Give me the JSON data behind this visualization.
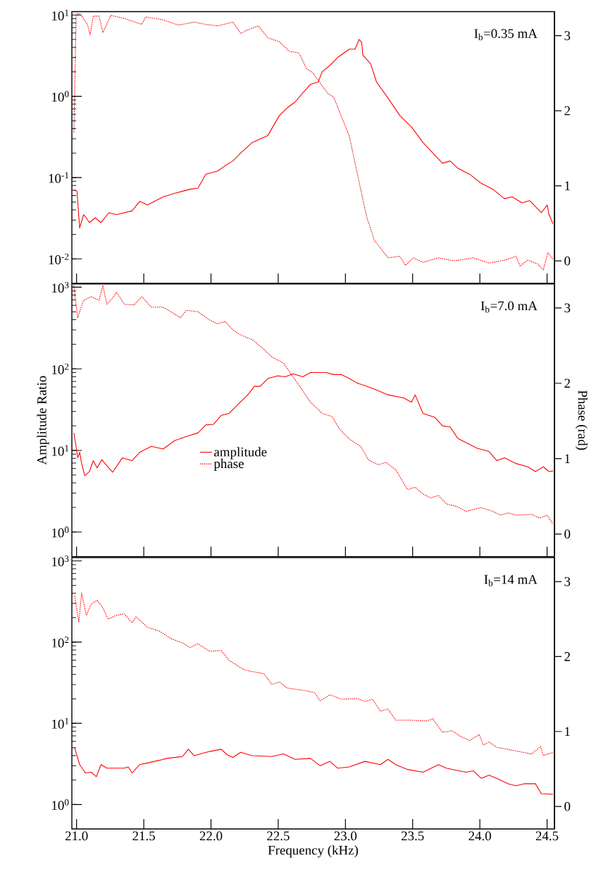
{
  "chart_data": [
    {
      "type": "line",
      "log": "y",
      "xlim": [
        20.965,
        24.555
      ],
      "ylim": [
        0.005,
        11
      ],
      "y2lim": [
        -0.3,
        3.32
      ],
      "tick_labels": "y",
      "xticks": [
        {
          "value": 21,
          "label": null
        },
        {
          "value": 21.5,
          "label": null
        },
        {
          "value": 22,
          "label": null
        },
        {
          "value": 22.5,
          "label": null
        },
        {
          "value": 23,
          "label": null
        },
        {
          "value": 23.5,
          "label": null
        },
        {
          "value": 24,
          "label": null
        },
        {
          "value": 24.5,
          "label": null
        }
      ],
      "yticks": [
        {
          "value": 0.01,
          "label": "10$^{-2}$"
        },
        {
          "value": 0.1,
          "label": "10$^{-1}$"
        },
        {
          "value": 1,
          "label": "10$^{0}$"
        },
        {
          "value": 10,
          "label": "10$^{1}$"
        }
      ],
      "y2ticks": [
        0,
        1,
        2,
        3
      ],
      "annotations": [
        "I$_{b}$=0.35 mA"
      ],
      "series": [
        {
          "color": "#ff0000",
          "line_style": "solid",
          "x": [
            20.98,
            21.003,
            21.023,
            21.052,
            21.072,
            21.095,
            21.139,
            21.182,
            21.24,
            21.297,
            21.413,
            21.47,
            21.528,
            21.644,
            21.73,
            21.846,
            21.903,
            21.961,
            22.048,
            22.105,
            22.163,
            22.221,
            22.307,
            22.423,
            22.509,
            22.567,
            22.625,
            22.683,
            22.74,
            22.798,
            22.827,
            22.885,
            22.942,
            23.029,
            23.072,
            23.101,
            23.121,
            23.13,
            23.188,
            23.231,
            23.317,
            23.404,
            23.491,
            23.577,
            23.664,
            23.722,
            23.779,
            23.837,
            23.924,
            24.01,
            24.097,
            24.183,
            24.241,
            24.313,
            24.371,
            24.414,
            24.457,
            24.501,
            24.515,
            24.544
          ],
          "values": [
            0.07,
            0.068,
            0.024,
            0.035,
            0.032,
            0.028,
            0.032,
            0.028,
            0.037,
            0.035,
            0.039,
            0.051,
            0.046,
            0.058,
            0.064,
            0.072,
            0.074,
            0.11,
            0.12,
            0.14,
            0.16,
            0.2,
            0.27,
            0.33,
            0.58,
            0.72,
            0.85,
            1.1,
            1.4,
            1.5,
            2.0,
            2.4,
            3.0,
            3.8,
            3.8,
            5.0,
            4.6,
            3.2,
            2.5,
            1.5,
            0.95,
            0.58,
            0.42,
            0.27,
            0.19,
            0.15,
            0.16,
            0.13,
            0.11,
            0.085,
            0.072,
            0.055,
            0.058,
            0.049,
            0.052,
            0.044,
            0.037,
            0.046,
            0.035,
            0.027
          ]
        },
        {
          "color": "#ff0000",
          "line_style": "dotted",
          "axis": "y2",
          "x": [
            20.98,
            20.997,
            21.009,
            21.038,
            21.081,
            21.101,
            21.124,
            21.167,
            21.196,
            21.254,
            21.355,
            21.485,
            21.514,
            21.644,
            21.759,
            21.874,
            21.961,
            22.048,
            22.163,
            22.221,
            22.278,
            22.351,
            22.423,
            22.509,
            22.582,
            22.654,
            22.711,
            22.755,
            22.827,
            22.87,
            22.913,
            22.971,
            23.029,
            23.072,
            23.115,
            23.159,
            23.216,
            23.274,
            23.317,
            23.404,
            23.447,
            23.505,
            23.577,
            23.693,
            23.808,
            23.952,
            24.068,
            24.183,
            24.27,
            24.299,
            24.356,
            24.429,
            24.472,
            24.506,
            24.544
          ],
          "values": [
            1.71,
            3.26,
            3.3,
            3.26,
            3.15,
            3.01,
            3.26,
            3.26,
            3.04,
            3.27,
            3.23,
            3.15,
            3.25,
            3.21,
            3.14,
            3.18,
            3.15,
            3.13,
            3.18,
            3.03,
            3.08,
            3.13,
            2.97,
            2.92,
            2.79,
            2.77,
            2.56,
            2.51,
            2.33,
            2.23,
            2.18,
            1.92,
            1.66,
            1.3,
            0.94,
            0.58,
            0.27,
            0.14,
            0.04,
            0.06,
            -0.06,
            0.04,
            -0.02,
            0.04,
            0,
            0.04,
            -0.03,
            0.01,
            0.06,
            -0.07,
            0.01,
            -0.04,
            -0.12,
            0.11,
            0.02
          ]
        }
      ]
    },
    {
      "type": "line",
      "log": "y",
      "xlim": [
        20.965,
        24.555
      ],
      "ylim": [
        0.5,
        1100
      ],
      "y2lim": [
        -0.3,
        3.32
      ],
      "tick_labels": "y",
      "ylabel": "Amplitude Ratio",
      "y2label": "Phase (rad)",
      "legend": "bottom left",
      "xticks": [
        {
          "value": 21,
          "label": null
        },
        {
          "value": 21.5,
          "label": null
        },
        {
          "value": 22,
          "label": null
        },
        {
          "value": 22.5,
          "label": null
        },
        {
          "value": 23,
          "label": null
        },
        {
          "value": 23.5,
          "label": null
        },
        {
          "value": 24,
          "label": null
        },
        {
          "value": 24.5,
          "label": null
        }
      ],
      "yticks": [
        {
          "value": 1,
          "label": "10$^{0}$"
        },
        {
          "value": 10,
          "label": "10$^{1}$"
        },
        {
          "value": 100,
          "label": "10$^{2}$"
        },
        {
          "value": 1000,
          "label": "10$^{3}$"
        }
      ],
      "y2ticks": [
        0,
        1,
        2,
        3
      ],
      "annotations": [
        "I$_{b}$=7.0 mA"
      ],
      "series": [
        {
          "name": "amplitude",
          "color": "#ff0000",
          "line_style": "solid",
          "x": [
            20.98,
            20.994,
            21.009,
            21.023,
            21.038,
            21.061,
            21.095,
            21.124,
            21.153,
            21.188,
            21.24,
            21.268,
            21.312,
            21.341,
            21.413,
            21.47,
            21.557,
            21.644,
            21.73,
            21.817,
            21.903,
            21.961,
            22.019,
            22.076,
            22.134,
            22.192,
            22.278,
            22.322,
            22.365,
            22.423,
            22.495,
            22.553,
            22.61,
            22.683,
            22.74,
            22.856,
            22.913,
            22.971,
            23.029,
            23.087,
            23.159,
            23.231,
            23.317,
            23.433,
            23.491,
            23.519,
            23.577,
            23.664,
            23.722,
            23.779,
            23.837,
            23.895,
            23.981,
            24.068,
            24.126,
            24.183,
            24.27,
            24.356,
            24.414,
            24.472,
            24.515,
            24.544
          ],
          "values": [
            16.4,
            11.9,
            8.1,
            9.5,
            6.9,
            4.9,
            5.5,
            7.5,
            6.1,
            7.7,
            6.1,
            5.4,
            6.9,
            8.1,
            7.5,
            9.5,
            11.2,
            10.4,
            13.2,
            14.8,
            16.4,
            20.5,
            20.9,
            26.9,
            28.4,
            35.4,
            49,
            61,
            61,
            76,
            82,
            80,
            87,
            80,
            90,
            90,
            85,
            85,
            76,
            67,
            61,
            55,
            48,
            44,
            39,
            48,
            28.4,
            25.5,
            20,
            19.4,
            14,
            12.5,
            10.6,
            9.7,
            7.5,
            8.1,
            6.9,
            6.3,
            5.5,
            6.3,
            5.5,
            5.6
          ]
        },
        {
          "name": "phase",
          "color": "#ff0000",
          "line_style": "dotted",
          "axis": "y2",
          "x": [
            20.98,
            20.994,
            21.009,
            21.023,
            21.052,
            21.11,
            21.167,
            21.196,
            21.225,
            21.268,
            21.297,
            21.355,
            21.427,
            21.485,
            21.557,
            21.644,
            21.701,
            21.773,
            21.817,
            21.903,
            21.99,
            22.048,
            22.105,
            22.163,
            22.221,
            22.307,
            22.394,
            22.452,
            22.538,
            22.596,
            22.668,
            22.74,
            22.827,
            22.899,
            22.957,
            23.029,
            23.115,
            23.173,
            23.245,
            23.303,
            23.375,
            23.462,
            23.519,
            23.577,
            23.635,
            23.693,
            23.75,
            23.837,
            23.895,
            24.01,
            24.097,
            24.154,
            24.212,
            24.27,
            24.385,
            24.443,
            24.501,
            24.544
          ],
          "values": [
            3.3,
            3.08,
            2.87,
            2.95,
            3.1,
            3.15,
            3.1,
            3.3,
            3.05,
            3.13,
            3.21,
            3.05,
            3.04,
            3.15,
            3.01,
            3.01,
            2.95,
            2.87,
            2.97,
            2.95,
            2.84,
            2.79,
            2.82,
            2.71,
            2.64,
            2.58,
            2.45,
            2.35,
            2.27,
            2.12,
            1.94,
            1.75,
            1.6,
            1.56,
            1.39,
            1.26,
            1.16,
            0.98,
            0.92,
            0.95,
            0.85,
            0.59,
            0.62,
            0.53,
            0.48,
            0.51,
            0.4,
            0.36,
            0.3,
            0.35,
            0.3,
            0.25,
            0.28,
            0.25,
            0.26,
            0.21,
            0.25,
            0.13
          ]
        }
      ]
    },
    {
      "type": "line",
      "log": "y",
      "xlim": [
        20.965,
        24.555
      ],
      "ylim": [
        0.5,
        1100
      ],
      "y2lim": [
        -0.3,
        3.32
      ],
      "xlabel": "Frequency (kHz)",
      "xticks": [
        {
          "value": 21,
          "label": "21.0"
        },
        {
          "value": 21.5,
          "label": "21.5"
        },
        {
          "value": 22,
          "label": "22.0"
        },
        {
          "value": 22.5,
          "label": "22.5"
        },
        {
          "value": 23,
          "label": "23.0"
        },
        {
          "value": 23.5,
          "label": "23.5"
        },
        {
          "value": 24,
          "label": "24.0"
        },
        {
          "value": 24.5,
          "label": "24.5"
        }
      ],
      "yticks": [
        {
          "value": 1,
          "label": "10$^{0}$"
        },
        {
          "value": 10,
          "label": "10$^{1}$"
        },
        {
          "value": 100,
          "label": "10$^{2}$"
        },
        {
          "value": 1000,
          "label": "10$^{3}$"
        }
      ],
      "y2ticks": [
        0,
        1,
        2,
        3
      ],
      "annotations": [
        "I$_{b}$=14 mA"
      ],
      "series": [
        {
          "color": "#ff0000",
          "line_style": "solid",
          "x": [
            20.986,
            21.023,
            21.066,
            21.11,
            21.147,
            21.182,
            21.225,
            21.355,
            21.384,
            21.413,
            21.47,
            21.528,
            21.615,
            21.672,
            21.788,
            21.831,
            21.874,
            21.99,
            22.076,
            22.12,
            22.163,
            22.221,
            22.307,
            22.452,
            22.538,
            22.625,
            22.74,
            22.812,
            22.885,
            22.942,
            23.029,
            23.144,
            23.26,
            23.317,
            23.375,
            23.462,
            23.577,
            23.693,
            23.75,
            23.895,
            23.952,
            24.01,
            24.068,
            24.126,
            24.212,
            24.27,
            24.328,
            24.414,
            24.457,
            24.544
          ],
          "values": [
            5.0,
            3.1,
            2.45,
            2.5,
            2.2,
            3.1,
            2.8,
            2.8,
            2.9,
            2.45,
            3.1,
            3.25,
            3.5,
            3.7,
            3.9,
            4.8,
            4.0,
            4.5,
            4.8,
            4.1,
            3.8,
            4.4,
            4.0,
            3.9,
            4.2,
            3.6,
            3.7,
            3.0,
            3.4,
            2.8,
            2.9,
            3.4,
            3.1,
            3.6,
            3.1,
            2.7,
            2.5,
            3.1,
            2.8,
            2.5,
            2.6,
            2.1,
            2.3,
            2.1,
            1.8,
            1.7,
            1.8,
            1.8,
            1.36,
            1.34
          ]
        },
        {
          "color": "#ff0000",
          "line_style": "dotted",
          "axis": "y2",
          "x": [
            20.986,
            21.017,
            21.038,
            21.072,
            21.11,
            21.153,
            21.196,
            21.234,
            21.297,
            21.355,
            21.413,
            21.442,
            21.528,
            21.615,
            21.701,
            21.788,
            21.846,
            21.903,
            21.99,
            22.076,
            22.134,
            22.25,
            22.336,
            22.394,
            22.452,
            22.509,
            22.567,
            22.683,
            22.769,
            22.812,
            22.885,
            22.971,
            23.087,
            23.144,
            23.202,
            23.26,
            23.317,
            23.375,
            23.491,
            23.606,
            23.649,
            23.722,
            23.794,
            23.851,
            23.924,
            23.996,
            24.025,
            24.068,
            24.126,
            24.241,
            24.299,
            24.385,
            24.452,
            24.472,
            24.544
          ],
          "values": [
            2.81,
            2.46,
            2.85,
            2.55,
            2.7,
            2.75,
            2.65,
            2.5,
            2.55,
            2.57,
            2.45,
            2.53,
            2.39,
            2.34,
            2.24,
            2.18,
            2.12,
            2.17,
            2.07,
            2.08,
            1.95,
            1.82,
            1.79,
            1.77,
            1.63,
            1.66,
            1.58,
            1.55,
            1.52,
            1.41,
            1.49,
            1.43,
            1.44,
            1.4,
            1.43,
            1.27,
            1.3,
            1.15,
            1.15,
            1.14,
            1.17,
            0.99,
            1.01,
            0.94,
            0.88,
            0.96,
            0.82,
            0.86,
            0.79,
            0.75,
            0.73,
            0.7,
            0.8,
            0.68,
            0.72
          ]
        }
      ]
    }
  ]
}
